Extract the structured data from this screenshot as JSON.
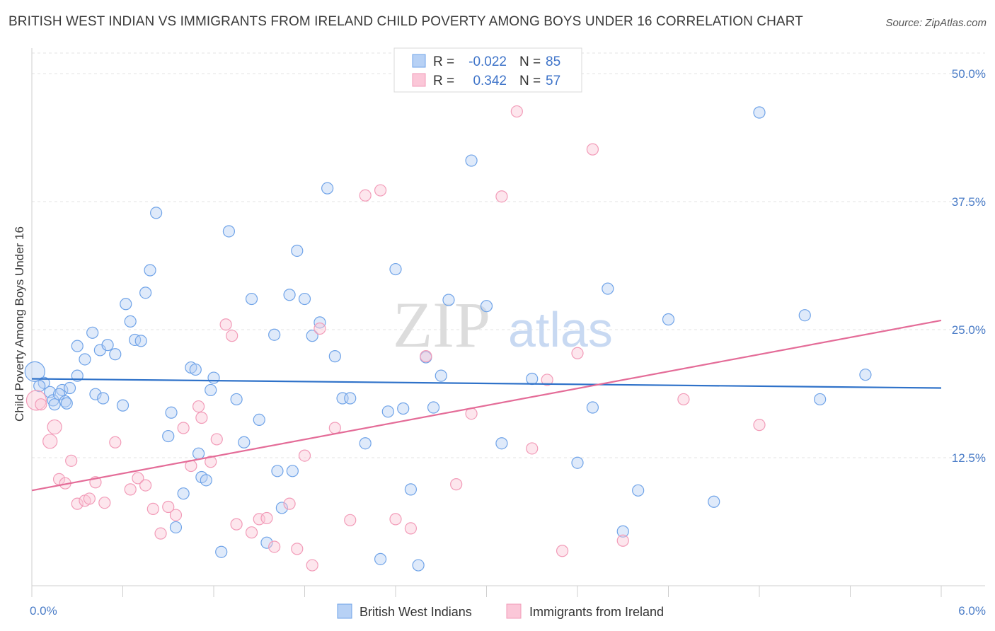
{
  "header": {
    "title": "BRITISH WEST INDIAN VS IMMIGRANTS FROM IRELAND CHILD POVERTY AMONG BOYS UNDER 16 CORRELATION CHART",
    "source": "Source: ZipAtlas.com"
  },
  "watermark": {
    "zip": "ZIP",
    "atlas": "atlas"
  },
  "legend": {
    "rows": [
      {
        "r_label": "R =",
        "r_value": "-0.022",
        "n_label": "N =",
        "n_value": "85"
      },
      {
        "r_label": "R =",
        "r_value": "0.342",
        "n_label": "N =",
        "n_value": "57"
      }
    ]
  },
  "chart_data": {
    "type": "scatter",
    "title": "BRITISH WEST INDIAN VS IMMIGRANTS FROM IRELAND CHILD POVERTY AMONG BOYS UNDER 16 CORRELATION CHART",
    "xlabel": "",
    "ylabel": "Child Poverty Among Boys Under 16",
    "xlim": [
      0,
      6
    ],
    "ylim": [
      0,
      52
    ],
    "x_tick_labels": [
      "0.0%",
      "6.0%"
    ],
    "y_ticks": [
      12.5,
      25.0,
      37.5,
      50.0
    ],
    "y_tick_labels": [
      "12.5%",
      "25.0%",
      "37.5%",
      "50.0%"
    ],
    "grid": true,
    "legend_position": "top-center",
    "series": [
      {
        "name": "British West Indians",
        "color": "#6fa3e8",
        "r": -0.022,
        "n": 85,
        "trend": {
          "x": [
            0,
            6
          ],
          "y": [
            20.2,
            19.3
          ]
        },
        "points": [
          [
            0.02,
            20.9
          ],
          [
            0.08,
            19.8
          ],
          [
            0.12,
            18.9
          ],
          [
            0.14,
            18.1
          ],
          [
            0.15,
            17.7
          ],
          [
            0.2,
            19.1
          ],
          [
            0.18,
            18.7
          ],
          [
            0.22,
            18.0
          ],
          [
            0.25,
            19.3
          ],
          [
            0.23,
            17.8
          ],
          [
            0.3,
            23.4
          ],
          [
            0.35,
            22.1
          ],
          [
            0.4,
            24.7
          ],
          [
            0.45,
            23.0
          ],
          [
            0.5,
            23.5
          ],
          [
            0.42,
            18.7
          ],
          [
            0.47,
            18.3
          ],
          [
            0.6,
            17.6
          ],
          [
            0.62,
            27.5
          ],
          [
            0.65,
            25.8
          ],
          [
            0.68,
            24.0
          ],
          [
            0.72,
            23.9
          ],
          [
            0.75,
            28.6
          ],
          [
            0.78,
            30.8
          ],
          [
            0.82,
            36.4
          ],
          [
            0.9,
            14.6
          ],
          [
            0.92,
            16.9
          ],
          [
            0.95,
            5.7
          ],
          [
            1.0,
            9.0
          ],
          [
            1.05,
            21.3
          ],
          [
            1.08,
            21.1
          ],
          [
            1.1,
            12.9
          ],
          [
            1.12,
            10.6
          ],
          [
            1.15,
            10.3
          ],
          [
            1.18,
            19.1
          ],
          [
            1.2,
            20.3
          ],
          [
            1.25,
            3.3
          ],
          [
            1.3,
            34.6
          ],
          [
            1.35,
            18.2
          ],
          [
            1.4,
            14.0
          ],
          [
            1.45,
            28.0
          ],
          [
            1.5,
            16.2
          ],
          [
            1.55,
            4.2
          ],
          [
            1.6,
            24.5
          ],
          [
            1.62,
            11.2
          ],
          [
            1.65,
            7.6
          ],
          [
            1.7,
            28.4
          ],
          [
            1.72,
            11.2
          ],
          [
            1.75,
            32.7
          ],
          [
            1.8,
            28.0
          ],
          [
            1.85,
            24.4
          ],
          [
            1.9,
            25.7
          ],
          [
            1.95,
            38.8
          ],
          [
            2.0,
            22.4
          ],
          [
            2.05,
            18.3
          ],
          [
            2.1,
            18.3
          ],
          [
            2.2,
            13.9
          ],
          [
            2.3,
            2.6
          ],
          [
            2.35,
            17.0
          ],
          [
            2.4,
            30.9
          ],
          [
            2.45,
            17.3
          ],
          [
            2.5,
            9.4
          ],
          [
            2.55,
            2.0
          ],
          [
            2.6,
            22.3
          ],
          [
            2.65,
            17.4
          ],
          [
            2.7,
            20.5
          ],
          [
            2.75,
            27.9
          ],
          [
            2.9,
            41.5
          ],
          [
            3.0,
            27.3
          ],
          [
            3.1,
            13.9
          ],
          [
            3.3,
            20.2
          ],
          [
            3.6,
            12.0
          ],
          [
            3.7,
            17.4
          ],
          [
            3.8,
            29.0
          ],
          [
            3.9,
            5.3
          ],
          [
            4.0,
            9.3
          ],
          [
            4.2,
            26.0
          ],
          [
            4.5,
            8.2
          ],
          [
            4.8,
            46.2
          ],
          [
            5.1,
            26.4
          ],
          [
            5.2,
            18.2
          ],
          [
            5.5,
            20.6
          ],
          [
            0.05,
            19.5
          ],
          [
            0.55,
            22.6
          ],
          [
            0.3,
            20.5
          ]
        ]
      },
      {
        "name": "Immigrants from Ireland",
        "color": "#f29bb8",
        "r": 0.342,
        "n": 57,
        "trend": {
          "x": [
            0,
            6
          ],
          "y": [
            9.3,
            25.9
          ]
        },
        "points": [
          [
            0.03,
            18.1
          ],
          [
            0.06,
            17.7
          ],
          [
            0.12,
            14.1
          ],
          [
            0.15,
            15.5
          ],
          [
            0.18,
            10.4
          ],
          [
            0.22,
            10.0
          ],
          [
            0.26,
            12.2
          ],
          [
            0.3,
            8.0
          ],
          [
            0.35,
            8.3
          ],
          [
            0.38,
            8.5
          ],
          [
            0.42,
            10.1
          ],
          [
            0.48,
            8.1
          ],
          [
            0.55,
            14.0
          ],
          [
            0.65,
            9.4
          ],
          [
            0.7,
            10.5
          ],
          [
            0.75,
            9.8
          ],
          [
            0.8,
            7.5
          ],
          [
            0.85,
            5.1
          ],
          [
            0.9,
            7.7
          ],
          [
            0.95,
            6.9
          ],
          [
            1.0,
            15.4
          ],
          [
            1.05,
            11.7
          ],
          [
            1.1,
            17.5
          ],
          [
            1.12,
            16.4
          ],
          [
            1.18,
            12.1
          ],
          [
            1.22,
            14.3
          ],
          [
            1.28,
            25.5
          ],
          [
            1.32,
            24.4
          ],
          [
            1.35,
            6.0
          ],
          [
            1.45,
            5.2
          ],
          [
            1.5,
            6.5
          ],
          [
            1.55,
            6.6
          ],
          [
            1.6,
            3.8
          ],
          [
            1.7,
            8.0
          ],
          [
            1.75,
            3.6
          ],
          [
            1.8,
            12.7
          ],
          [
            1.85,
            2.0
          ],
          [
            1.9,
            25.1
          ],
          [
            2.0,
            15.4
          ],
          [
            2.1,
            6.4
          ],
          [
            2.2,
            38.1
          ],
          [
            2.3,
            38.6
          ],
          [
            2.4,
            6.5
          ],
          [
            2.5,
            5.6
          ],
          [
            2.6,
            22.4
          ],
          [
            2.8,
            9.9
          ],
          [
            2.9,
            16.8
          ],
          [
            3.1,
            38.0
          ],
          [
            3.2,
            46.3
          ],
          [
            3.3,
            13.4
          ],
          [
            3.4,
            20.1
          ],
          [
            3.5,
            3.4
          ],
          [
            3.6,
            22.7
          ],
          [
            3.7,
            42.6
          ],
          [
            3.9,
            4.4
          ],
          [
            4.3,
            18.2
          ],
          [
            4.8,
            15.7
          ]
        ]
      }
    ]
  },
  "bottom_legend": {
    "items": [
      {
        "label": "British West Indians",
        "color": "#6fa3e8"
      },
      {
        "label": "Immigrants from Ireland",
        "color": "#f29bb8"
      }
    ]
  }
}
